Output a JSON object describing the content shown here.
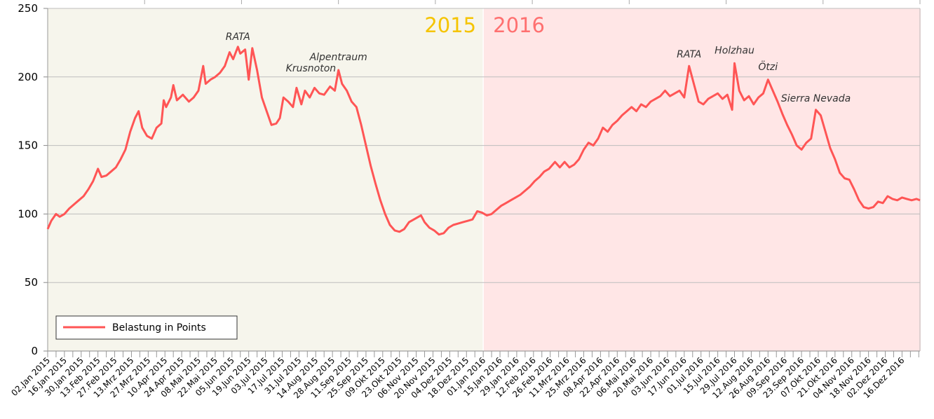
{
  "chart_data": {
    "type": "line",
    "title": "",
    "xlabel": "",
    "ylabel": "",
    "ylim": [
      0,
      250
    ],
    "yticks": [
      0,
      50,
      100,
      150,
      200,
      250
    ],
    "grid": true,
    "legend_position": "bottom-left",
    "colors": {
      "series": "#ff5555",
      "band_2015": "#f6f5ec",
      "band_2016": "#ffe6e6",
      "label_2015": "#f5c400",
      "label_2016": "#ff7070"
    },
    "year_bands": [
      {
        "label": "2015",
        "from": "2015-01-02",
        "to": "2016-01-01"
      },
      {
        "label": "2016",
        "from": "2016-01-01",
        "to": "2016-12-31"
      }
    ],
    "x_tick_labels": [
      "02.Jan 2015",
      "16.Jan 2015",
      "30.Jan 2015",
      "13.Feb 2015",
      "27.Feb 2015",
      "13.Mrz 2015",
      "27.Mrz 2015",
      "10.Apr 2015",
      "24.Apr 2015",
      "08.Mai 2015",
      "22.Mai 2015",
      "05.Jun 2015",
      "19.Jun 2015",
      "03.Jul 2015",
      "17.Jul 2015",
      "31.Jul 2015",
      "14.Aug 2015",
      "28.Aug 2015",
      "11.Sep 2015",
      "25.Sep 2015",
      "09.Okt 2015",
      "23.Okt 2015",
      "06.Nov 2015",
      "20.Nov 2015",
      "04.Dez 2015",
      "18.Dez 2015",
      "01.Jan 2016",
      "15.Jan 2016",
      "29.Jan 2016",
      "12.Feb 2016",
      "26.Feb 2016",
      "11.Mrz 2016",
      "25.Mrz 2016",
      "08.Apr 2016",
      "22.Apr 2016",
      "06.Mai 2016",
      "20.Mai 2016",
      "03.Jun 2016",
      "17.Jun 2016",
      "01.Jul 2016",
      "15.Jul 2016",
      "29.Jul 2016",
      "12.Aug 2016",
      "26.Aug 2016",
      "09.Sep 2016",
      "23.Sep 2016",
      "07.Okt 2016",
      "21.Okt 2016",
      "04.Nov 2016",
      "18.Nov 2016",
      "02.Dez 2016",
      "16.Dez 2016"
    ],
    "series": [
      {
        "name": "Belastung in Points",
        "points": [
          [
            "2015-01-02",
            89
          ],
          [
            "2015-01-05",
            95
          ],
          [
            "2015-01-09",
            100
          ],
          [
            "2015-01-12",
            98
          ],
          [
            "2015-01-16",
            100
          ],
          [
            "2015-01-20",
            104
          ],
          [
            "2015-01-24",
            107
          ],
          [
            "2015-01-28",
            110
          ],
          [
            "2015-02-01",
            113
          ],
          [
            "2015-02-05",
            118
          ],
          [
            "2015-02-09",
            124
          ],
          [
            "2015-02-13",
            133
          ],
          [
            "2015-02-16",
            127
          ],
          [
            "2015-02-20",
            128
          ],
          [
            "2015-02-24",
            131
          ],
          [
            "2015-02-28",
            134
          ],
          [
            "2015-03-04",
            140
          ],
          [
            "2015-03-08",
            147
          ],
          [
            "2015-03-12",
            160
          ],
          [
            "2015-03-16",
            170
          ],
          [
            "2015-03-19",
            175
          ],
          [
            "2015-03-22",
            163
          ],
          [
            "2015-03-26",
            157
          ],
          [
            "2015-03-30",
            155
          ],
          [
            "2015-04-03",
            163
          ],
          [
            "2015-04-07",
            166
          ],
          [
            "2015-04-09",
            183
          ],
          [
            "2015-04-11",
            178
          ],
          [
            "2015-04-15",
            185
          ],
          [
            "2015-04-17",
            194
          ],
          [
            "2015-04-20",
            183
          ],
          [
            "2015-04-25",
            187
          ],
          [
            "2015-04-30",
            182
          ],
          [
            "2015-05-04",
            185
          ],
          [
            "2015-05-08",
            190
          ],
          [
            "2015-05-12",
            208
          ],
          [
            "2015-05-14",
            195
          ],
          [
            "2015-05-18",
            198
          ],
          [
            "2015-05-22",
            200
          ],
          [
            "2015-05-26",
            203
          ],
          [
            "2015-05-30",
            208
          ],
          [
            "2015-06-03",
            218
          ],
          [
            "2015-06-06",
            213
          ],
          [
            "2015-06-10",
            222
          ],
          [
            "2015-06-12",
            217
          ],
          [
            "2015-06-16",
            220
          ],
          [
            "2015-06-19",
            198
          ],
          [
            "2015-06-22",
            221
          ],
          [
            "2015-06-26",
            205
          ],
          [
            "2015-06-30",
            185
          ],
          [
            "2015-07-04",
            175
          ],
          [
            "2015-07-08",
            165
          ],
          [
            "2015-07-12",
            166
          ],
          [
            "2015-07-15",
            170
          ],
          [
            "2015-07-18",
            185
          ],
          [
            "2015-07-22",
            182
          ],
          [
            "2015-07-26",
            178
          ],
          [
            "2015-07-29",
            192
          ],
          [
            "2015-08-02",
            180
          ],
          [
            "2015-08-05",
            190
          ],
          [
            "2015-08-09",
            185
          ],
          [
            "2015-08-13",
            192
          ],
          [
            "2015-08-17",
            188
          ],
          [
            "2015-08-21",
            187
          ],
          [
            "2015-08-26",
            193
          ],
          [
            "2015-08-30",
            190
          ],
          [
            "2015-09-02",
            205
          ],
          [
            "2015-09-05",
            195
          ],
          [
            "2015-09-09",
            190
          ],
          [
            "2015-09-13",
            182
          ],
          [
            "2015-09-17",
            178
          ],
          [
            "2015-09-21",
            165
          ],
          [
            "2015-09-25",
            150
          ],
          [
            "2015-09-29",
            135
          ],
          [
            "2015-10-03",
            122
          ],
          [
            "2015-10-07",
            110
          ],
          [
            "2015-10-11",
            100
          ],
          [
            "2015-10-15",
            92
          ],
          [
            "2015-10-19",
            88
          ],
          [
            "2015-10-23",
            87
          ],
          [
            "2015-10-27",
            89
          ],
          [
            "2015-10-31",
            94
          ],
          [
            "2015-11-04",
            96
          ],
          [
            "2015-11-08",
            98
          ],
          [
            "2015-11-10",
            99
          ],
          [
            "2015-11-13",
            94
          ],
          [
            "2015-11-17",
            90
          ],
          [
            "2015-11-21",
            88
          ],
          [
            "2015-11-25",
            85
          ],
          [
            "2015-11-29",
            86
          ],
          [
            "2015-12-03",
            90
          ],
          [
            "2015-12-07",
            92
          ],
          [
            "2015-12-11",
            93
          ],
          [
            "2015-12-15",
            94
          ],
          [
            "2015-12-19",
            95
          ],
          [
            "2015-12-23",
            96
          ],
          [
            "2015-12-27",
            102
          ],
          [
            "2015-12-31",
            101
          ],
          [
            "2016-01-04",
            99
          ],
          [
            "2016-01-08",
            100
          ],
          [
            "2016-01-12",
            103
          ],
          [
            "2016-01-16",
            106
          ],
          [
            "2016-01-20",
            108
          ],
          [
            "2016-01-24",
            110
          ],
          [
            "2016-01-28",
            112
          ],
          [
            "2016-02-01",
            114
          ],
          [
            "2016-02-05",
            117
          ],
          [
            "2016-02-09",
            120
          ],
          [
            "2016-02-13",
            124
          ],
          [
            "2016-02-17",
            127
          ],
          [
            "2016-02-21",
            131
          ],
          [
            "2016-02-25",
            133
          ],
          [
            "2016-03-01",
            138
          ],
          [
            "2016-03-05",
            134
          ],
          [
            "2016-03-09",
            138
          ],
          [
            "2016-03-13",
            134
          ],
          [
            "2016-03-17",
            136
          ],
          [
            "2016-03-21",
            140
          ],
          [
            "2016-03-25",
            147
          ],
          [
            "2016-03-29",
            152
          ],
          [
            "2016-04-02",
            150
          ],
          [
            "2016-04-06",
            155
          ],
          [
            "2016-04-10",
            163
          ],
          [
            "2016-04-14",
            160
          ],
          [
            "2016-04-18",
            165
          ],
          [
            "2016-04-22",
            168
          ],
          [
            "2016-04-26",
            172
          ],
          [
            "2016-04-30",
            175
          ],
          [
            "2016-05-04",
            178
          ],
          [
            "2016-05-08",
            175
          ],
          [
            "2016-05-12",
            180
          ],
          [
            "2016-05-16",
            178
          ],
          [
            "2016-05-20",
            182
          ],
          [
            "2016-05-24",
            184
          ],
          [
            "2016-05-28",
            186
          ],
          [
            "2016-06-01",
            190
          ],
          [
            "2016-06-05",
            186
          ],
          [
            "2016-06-09",
            188
          ],
          [
            "2016-06-13",
            190
          ],
          [
            "2016-06-17",
            185
          ],
          [
            "2016-06-21",
            208
          ],
          [
            "2016-06-25",
            195
          ],
          [
            "2016-06-29",
            182
          ],
          [
            "2016-07-03",
            180
          ],
          [
            "2016-07-07",
            184
          ],
          [
            "2016-07-11",
            186
          ],
          [
            "2016-07-15",
            188
          ],
          [
            "2016-07-19",
            184
          ],
          [
            "2016-07-23",
            187
          ],
          [
            "2016-07-27",
            176
          ],
          [
            "2016-07-29",
            210
          ],
          [
            "2016-08-02",
            190
          ],
          [
            "2016-08-06",
            183
          ],
          [
            "2016-08-10",
            186
          ],
          [
            "2016-08-14",
            180
          ],
          [
            "2016-08-18",
            185
          ],
          [
            "2016-08-22",
            188
          ],
          [
            "2016-08-26",
            198
          ],
          [
            "2016-08-30",
            190
          ],
          [
            "2016-09-03",
            182
          ],
          [
            "2016-09-07",
            173
          ],
          [
            "2016-09-11",
            165
          ],
          [
            "2016-09-15",
            158
          ],
          [
            "2016-09-19",
            150
          ],
          [
            "2016-09-23",
            147
          ],
          [
            "2016-09-27",
            152
          ],
          [
            "2016-10-01",
            155
          ],
          [
            "2016-10-05",
            176
          ],
          [
            "2016-10-09",
            172
          ],
          [
            "2016-10-13",
            160
          ],
          [
            "2016-10-17",
            148
          ],
          [
            "2016-10-21",
            140
          ],
          [
            "2016-10-25",
            130
          ],
          [
            "2016-10-29",
            126
          ],
          [
            "2016-11-02",
            125
          ],
          [
            "2016-11-06",
            118
          ],
          [
            "2016-11-10",
            110
          ],
          [
            "2016-11-14",
            105
          ],
          [
            "2016-11-18",
            104
          ],
          [
            "2016-11-22",
            105
          ],
          [
            "2016-11-26",
            109
          ],
          [
            "2016-11-30",
            108
          ],
          [
            "2016-12-04",
            113
          ],
          [
            "2016-12-08",
            111
          ],
          [
            "2016-12-12",
            110
          ],
          [
            "2016-12-16",
            112
          ],
          [
            "2016-12-20",
            111
          ],
          [
            "2016-12-24",
            110
          ],
          [
            "2016-12-28",
            111
          ],
          [
            "2016-12-31",
            110
          ]
        ]
      }
    ],
    "annotations": [
      {
        "text": "RATA",
        "x": "2015-06-10",
        "y": 223
      },
      {
        "text": "Alpentraum",
        "x": "2015-09-02",
        "y": 208
      },
      {
        "text": "Krusnoton",
        "x": "2015-08-10",
        "y": 200
      },
      {
        "text": "RATA",
        "x": "2016-06-21",
        "y": 210
      },
      {
        "text": "Holzhau",
        "x": "2016-07-29",
        "y": 213
      },
      {
        "text": "Ötzi",
        "x": "2016-08-26",
        "y": 201
      },
      {
        "text": "Sierra Nevada",
        "x": "2016-10-05",
        "y": 178
      }
    ]
  }
}
